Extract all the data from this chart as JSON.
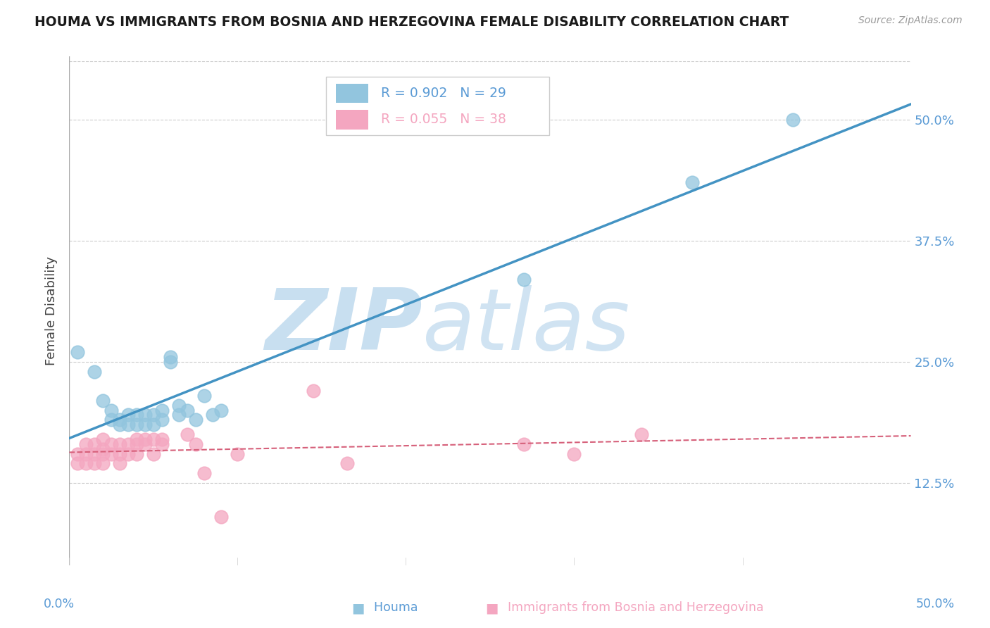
{
  "title": "HOUMA VS IMMIGRANTS FROM BOSNIA AND HERZEGOVINA FEMALE DISABILITY CORRELATION CHART",
  "source": "Source: ZipAtlas.com",
  "ylabel": "Female Disability",
  "ytick_labels": [
    "12.5%",
    "25.0%",
    "37.5%",
    "50.0%"
  ],
  "ytick_values": [
    0.125,
    0.25,
    0.375,
    0.5
  ],
  "xlim": [
    0.0,
    0.5
  ],
  "ylim": [
    0.04,
    0.565
  ],
  "houma_R": 0.902,
  "houma_N": 29,
  "bosnia_R": 0.055,
  "bosnia_N": 38,
  "houma_color": "#92c5de",
  "houma_edge_color": "#92c5de",
  "houma_line_color": "#4393c3",
  "bosnia_color": "#f4a6c0",
  "bosnia_edge_color": "#f4a6c0",
  "bosnia_line_color": "#d6607a",
  "houma_x": [
    0.005,
    0.015,
    0.02,
    0.025,
    0.025,
    0.03,
    0.03,
    0.035,
    0.035,
    0.04,
    0.04,
    0.045,
    0.045,
    0.05,
    0.05,
    0.055,
    0.055,
    0.06,
    0.06,
    0.065,
    0.065,
    0.07,
    0.075,
    0.08,
    0.085,
    0.09,
    0.27,
    0.37,
    0.43
  ],
  "houma_y": [
    0.26,
    0.24,
    0.21,
    0.2,
    0.19,
    0.19,
    0.185,
    0.195,
    0.185,
    0.195,
    0.185,
    0.195,
    0.185,
    0.195,
    0.185,
    0.2,
    0.19,
    0.25,
    0.255,
    0.205,
    0.195,
    0.2,
    0.19,
    0.215,
    0.195,
    0.2,
    0.335,
    0.435,
    0.5
  ],
  "bosnia_x": [
    0.005,
    0.005,
    0.01,
    0.01,
    0.01,
    0.015,
    0.015,
    0.015,
    0.02,
    0.02,
    0.02,
    0.02,
    0.025,
    0.025,
    0.03,
    0.03,
    0.03,
    0.035,
    0.035,
    0.04,
    0.04,
    0.04,
    0.045,
    0.045,
    0.05,
    0.05,
    0.055,
    0.055,
    0.07,
    0.075,
    0.08,
    0.09,
    0.1,
    0.145,
    0.165,
    0.27,
    0.3,
    0.34
  ],
  "bosnia_y": [
    0.155,
    0.145,
    0.165,
    0.155,
    0.145,
    0.165,
    0.155,
    0.145,
    0.17,
    0.16,
    0.155,
    0.145,
    0.165,
    0.155,
    0.165,
    0.155,
    0.145,
    0.165,
    0.155,
    0.17,
    0.165,
    0.155,
    0.17,
    0.165,
    0.17,
    0.155,
    0.17,
    0.165,
    0.175,
    0.165,
    0.135,
    0.09,
    0.155,
    0.22,
    0.145,
    0.165,
    0.155,
    0.175
  ],
  "grid_color": "#cccccc",
  "bg_color": "#ffffff",
  "title_fontsize": 13.5,
  "ylabel_color": "#444444",
  "tick_label_color": "#5b9bd5",
  "watermark_zip": "ZIP",
  "watermark_atlas": "atlas",
  "watermark_color": "#c8dff0"
}
